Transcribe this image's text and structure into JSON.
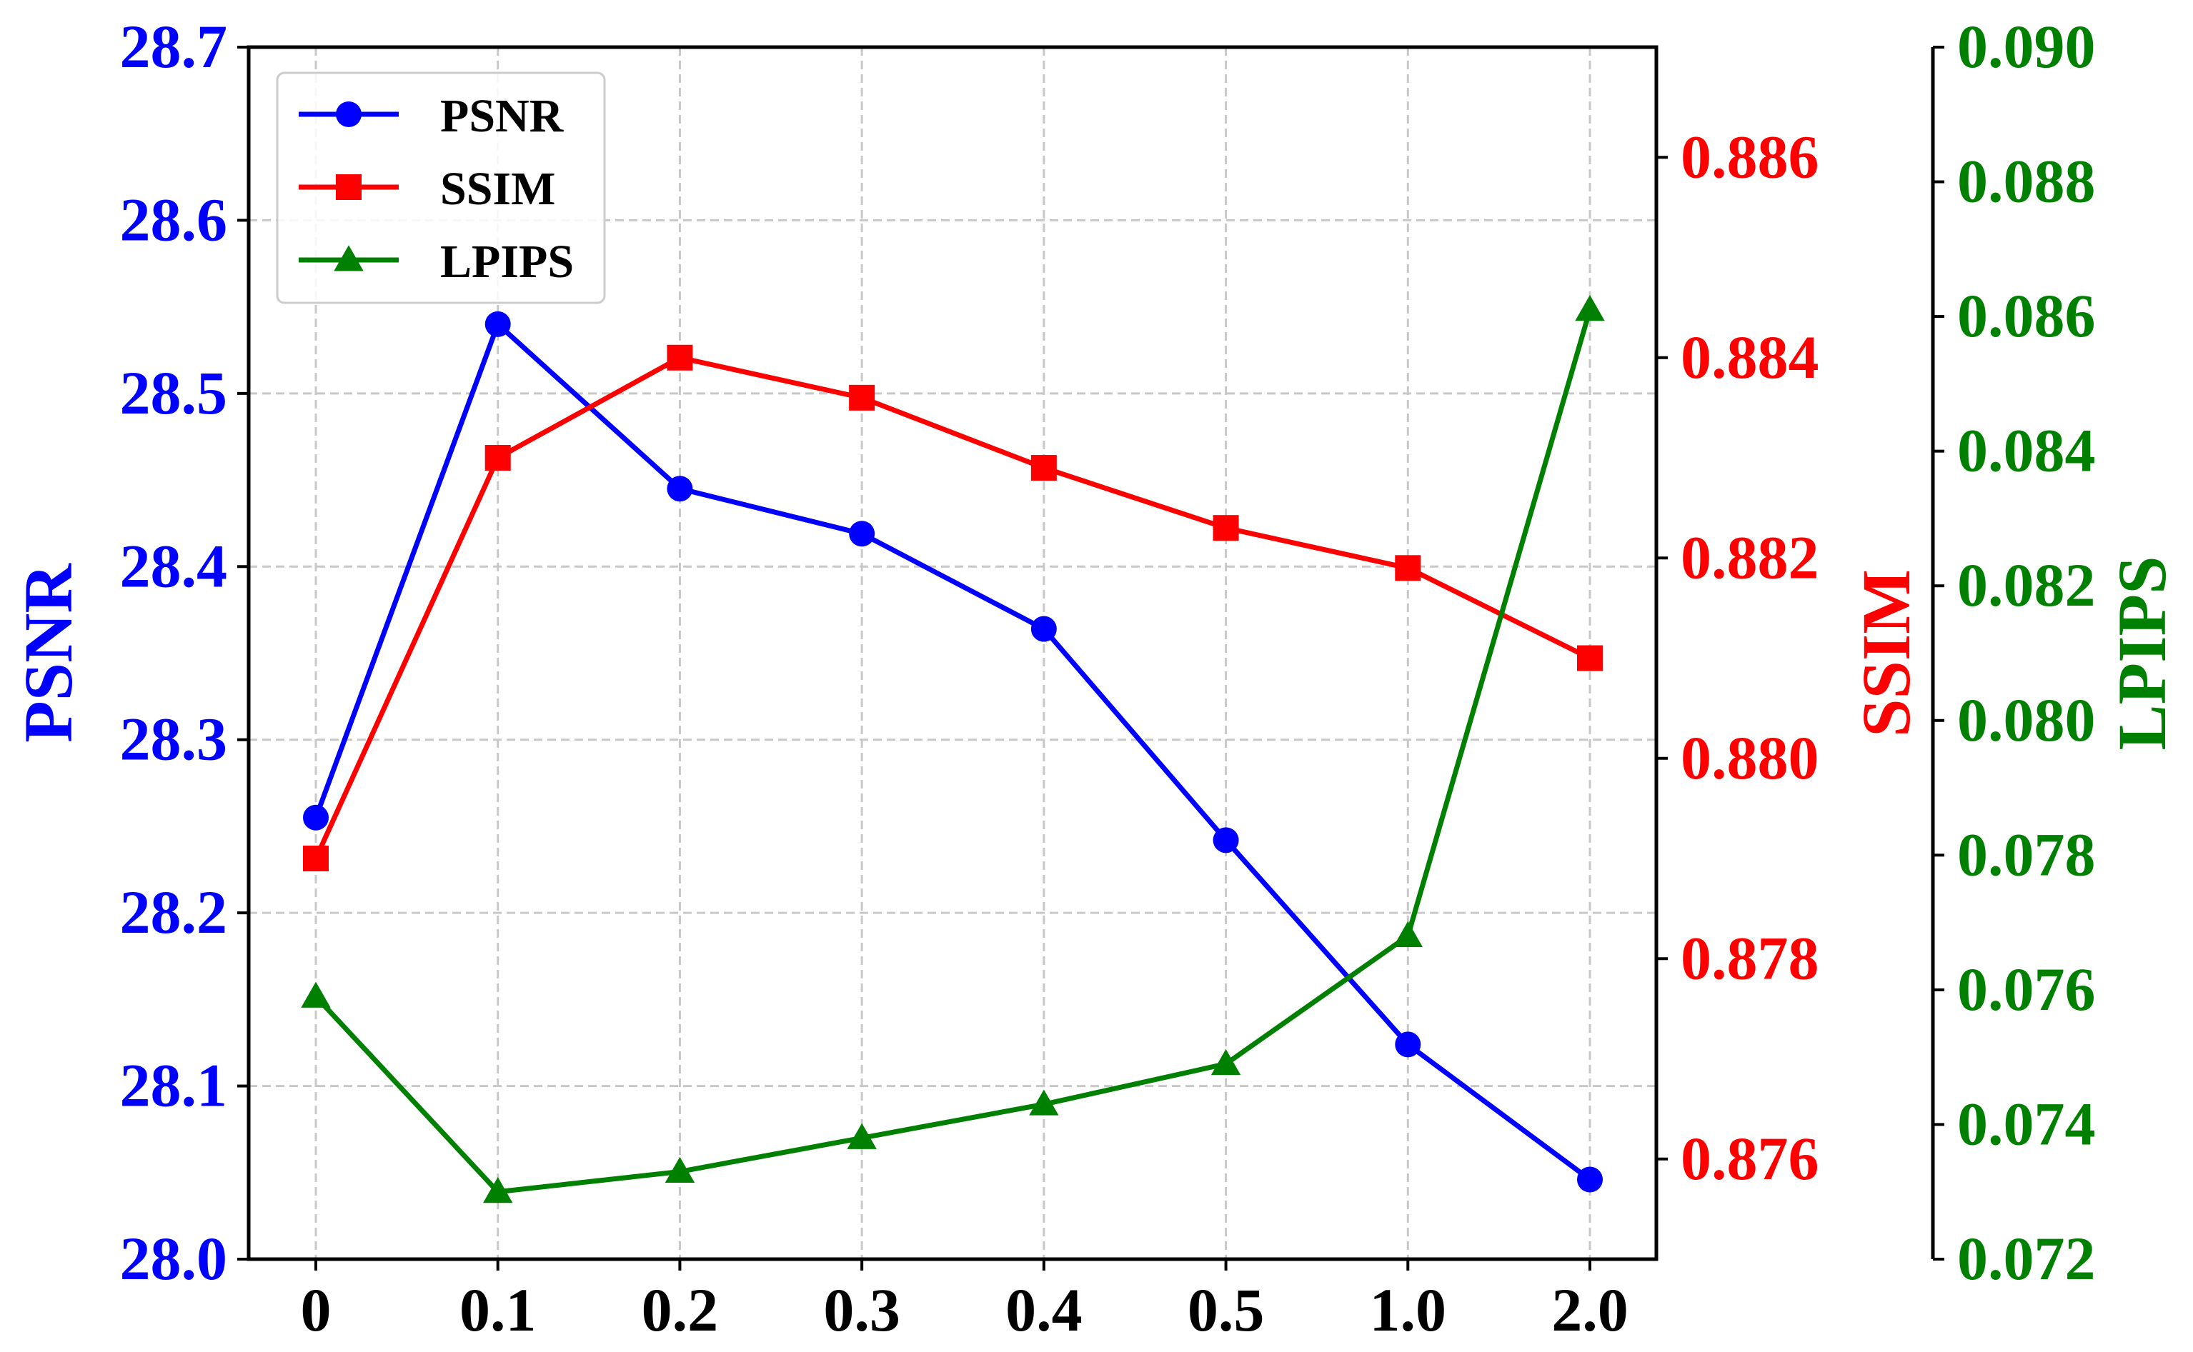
{
  "chart_data": {
    "type": "line",
    "categories": [
      "0",
      "0.1",
      "0.2",
      "0.3",
      "0.4",
      "0.5",
      "1.0",
      "2.0"
    ],
    "series": [
      {
        "name": "PSNR",
        "axis": "left",
        "color": "#0000ff",
        "marker": "circle",
        "values": [
          28.255,
          28.54,
          28.445,
          28.419,
          28.364,
          28.242,
          28.124,
          28.046
        ]
      },
      {
        "name": "SSIM",
        "axis": "right1",
        "color": "#ff0000",
        "marker": "square",
        "values": [
          0.879,
          0.883,
          0.884,
          0.8836,
          0.8829,
          0.8823,
          0.8819,
          0.881
        ]
      },
      {
        "name": "LPIPS",
        "axis": "right2",
        "color": "#008000",
        "marker": "triangle",
        "values": [
          0.0759,
          0.073,
          0.0733,
          0.0738,
          0.0743,
          0.0749,
          0.0768,
          0.0861
        ]
      }
    ],
    "axes": {
      "left": {
        "label": "PSNR",
        "color": "#0000ff",
        "ylim": [
          28.0,
          28.7
        ],
        "ticks": [
          "28.0",
          "28.1",
          "28.2",
          "28.3",
          "28.4",
          "28.5",
          "28.6",
          "28.7"
        ]
      },
      "right1": {
        "label": "SSIM",
        "color": "#ff0000",
        "ylim": [
          0.875,
          0.8871
        ],
        "ticks": [
          "0.876",
          "0.878",
          "0.880",
          "0.882",
          "0.884",
          "0.886"
        ]
      },
      "right2": {
        "label": "LPIPS",
        "color": "#008000",
        "ylim": [
          0.072,
          0.09
        ],
        "ticks": [
          "0.072",
          "0.074",
          "0.076",
          "0.078",
          "0.080",
          "0.082",
          "0.084",
          "0.086",
          "0.088",
          "0.090"
        ]
      }
    },
    "grid": true,
    "legend_placement": "top-left"
  }
}
